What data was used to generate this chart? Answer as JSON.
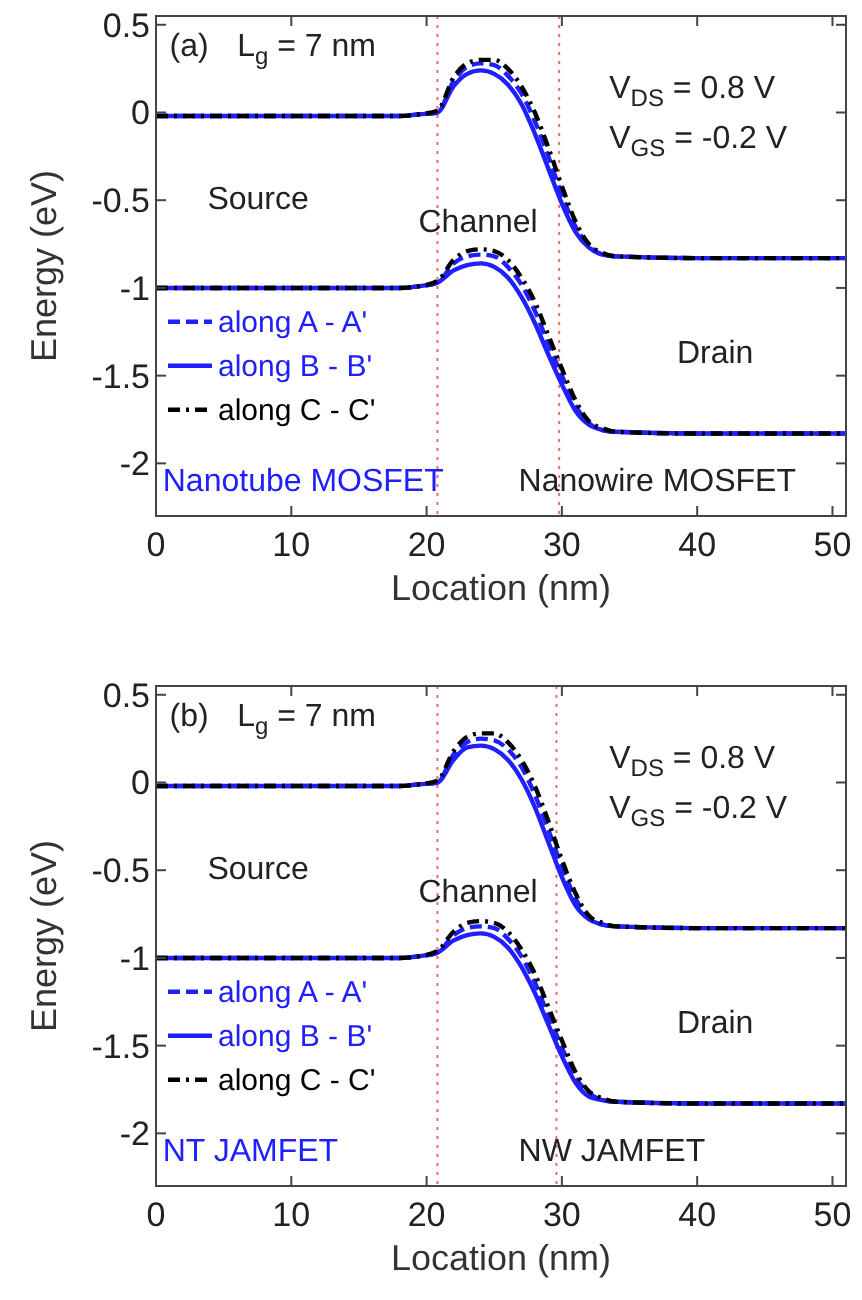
{
  "chart_data": [
    {
      "type": "line",
      "xlabel": "Location (nm)",
      "ylabel": "Energy (eV)",
      "xlim": [
        0,
        51
      ],
      "ylim": [
        -2.3,
        0.55
      ],
      "xticks": [
        0,
        10,
        20,
        30,
        40,
        50
      ],
      "yticks": [
        0.5,
        0,
        -0.5,
        -1,
        -1.5,
        -2
      ],
      "grid": false,
      "legend": "left",
      "marker": "none",
      "x": [
        0,
        18,
        19.5,
        20.8,
        22,
        23,
        24,
        25,
        26,
        27,
        28,
        29,
        30,
        31,
        32,
        33,
        34,
        40,
        51
      ],
      "ref_lines": [
        {
          "axis": "x",
          "value": 20.8,
          "color": "#ff6666",
          "line_style": "dotted"
        },
        {
          "axis": "x",
          "value": 29.8,
          "color": "#ff6666",
          "line_style": "dotted"
        }
      ],
      "annotations": [
        "(a)",
        "L$_{g}$ = 7 nm",
        "V$_{DS}$ = 0.8 V",
        "V$_{GS}$ = -0.2 V",
        "Source",
        "Channel",
        "Drain",
        "Nanotube MOSFET",
        "Nanowire MOSFET"
      ],
      "series": [
        {
          "name": "along A - A'",
          "color": "#2020ff",
          "line_style": "dashed",
          "values": [
            -0.02,
            -0.02,
            -0.01,
            0.0,
            0.18,
            0.26,
            0.28,
            0.27,
            0.21,
            0.11,
            -0.05,
            -0.25,
            -0.47,
            -0.65,
            -0.76,
            -0.81,
            -0.82,
            -0.83,
            -0.83
          ]
        },
        {
          "name": "along B - B'",
          "color": "#2020ff",
          "line_style": "solid",
          "values": [
            -0.02,
            -0.02,
            -0.01,
            0.0,
            0.15,
            0.22,
            0.24,
            0.22,
            0.16,
            0.05,
            -0.12,
            -0.32,
            -0.52,
            -0.68,
            -0.77,
            -0.81,
            -0.82,
            -0.83,
            -0.83
          ]
        },
        {
          "name": "along C - C'",
          "color": "#000000",
          "line_style": "dashdot",
          "values": [
            -0.02,
            -0.02,
            -0.01,
            0.01,
            0.2,
            0.28,
            0.3,
            0.3,
            0.25,
            0.15,
            0.0,
            -0.2,
            -0.42,
            -0.62,
            -0.75,
            -0.8,
            -0.82,
            -0.83,
            -0.83
          ]
        },
        {
          "color": "#2020ff",
          "line_style": "dashed",
          "values": [
            -1.0,
            -1.0,
            -0.99,
            -0.97,
            -0.86,
            -0.82,
            -0.81,
            -0.82,
            -0.88,
            -0.98,
            -1.13,
            -1.32,
            -1.5,
            -1.67,
            -1.77,
            -1.81,
            -1.82,
            -1.83,
            -1.83
          ]
        },
        {
          "color": "#2020ff",
          "line_style": "solid",
          "values": [
            -1.0,
            -1.0,
            -0.99,
            -0.97,
            -0.9,
            -0.87,
            -0.86,
            -0.88,
            -0.94,
            -1.05,
            -1.2,
            -1.38,
            -1.55,
            -1.7,
            -1.78,
            -1.81,
            -1.82,
            -1.83,
            -1.83
          ]
        },
        {
          "color": "#000000",
          "line_style": "dashdot",
          "values": [
            -1.0,
            -1.0,
            -0.99,
            -0.96,
            -0.84,
            -0.79,
            -0.78,
            -0.79,
            -0.84,
            -0.94,
            -1.08,
            -1.27,
            -1.46,
            -1.64,
            -1.76,
            -1.8,
            -1.82,
            -1.83,
            -1.83
          ]
        }
      ]
    },
    {
      "type": "line",
      "xlabel": "Location (nm)",
      "ylabel": "Energy (eV)",
      "xlim": [
        0,
        51
      ],
      "ylim": [
        -2.3,
        0.55
      ],
      "xticks": [
        0,
        10,
        20,
        30,
        40,
        50
      ],
      "yticks": [
        0.5,
        0,
        -0.5,
        -1,
        -1.5,
        -2
      ],
      "grid": false,
      "legend": "left",
      "marker": "none",
      "x": [
        0,
        18,
        19.5,
        20.8,
        22,
        23,
        24,
        25,
        26,
        27,
        28,
        29,
        30,
        31,
        32,
        33,
        34,
        40,
        51
      ],
      "ref_lines": [
        {
          "axis": "x",
          "value": 20.8,
          "color": "#ff6666",
          "line_style": "dotted"
        },
        {
          "axis": "x",
          "value": 29.6,
          "color": "#ff6666",
          "line_style": "dotted"
        }
      ],
      "annotations": [
        "(b)",
        "L$_{g}$ = 7 nm",
        "V$_{DS}$ = 0.8 V",
        "V$_{GS}$ = -0.2 V",
        "Source",
        "Channel",
        "Drain",
        "NT JAMFET",
        "NW JAMFET"
      ],
      "series": [
        {
          "name": "along A - A'",
          "color": "#2020ff",
          "line_style": "dashed",
          "values": [
            -0.02,
            -0.02,
            -0.01,
            0.0,
            0.16,
            0.23,
            0.25,
            0.24,
            0.19,
            0.09,
            -0.07,
            -0.27,
            -0.48,
            -0.66,
            -0.77,
            -0.81,
            -0.82,
            -0.83,
            -0.83
          ]
        },
        {
          "name": "along B - B'",
          "color": "#2020ff",
          "line_style": "solid",
          "values": [
            -0.02,
            -0.02,
            -0.01,
            0.0,
            0.13,
            0.2,
            0.21,
            0.19,
            0.13,
            0.02,
            -0.14,
            -0.34,
            -0.54,
            -0.7,
            -0.78,
            -0.81,
            -0.82,
            -0.83,
            -0.83
          ]
        },
        {
          "name": "along C - C'",
          "color": "#000000",
          "line_style": "dashdot",
          "values": [
            -0.02,
            -0.02,
            -0.01,
            0.01,
            0.18,
            0.26,
            0.28,
            0.28,
            0.23,
            0.13,
            -0.02,
            -0.22,
            -0.44,
            -0.63,
            -0.76,
            -0.8,
            -0.82,
            -0.83,
            -0.83
          ]
        },
        {
          "color": "#2020ff",
          "line_style": "dashed",
          "values": [
            -1.0,
            -1.0,
            -0.99,
            -0.97,
            -0.87,
            -0.83,
            -0.82,
            -0.83,
            -0.89,
            -0.99,
            -1.14,
            -1.33,
            -1.51,
            -1.68,
            -1.77,
            -1.81,
            -1.82,
            -1.83,
            -1.83
          ]
        },
        {
          "color": "#2020ff",
          "line_style": "solid",
          "values": [
            -1.0,
            -1.0,
            -0.99,
            -0.97,
            -0.9,
            -0.87,
            -0.86,
            -0.88,
            -0.94,
            -1.05,
            -1.2,
            -1.38,
            -1.56,
            -1.71,
            -1.79,
            -1.81,
            -1.82,
            -1.83,
            -1.83
          ]
        },
        {
          "color": "#000000",
          "line_style": "dashdot",
          "values": [
            -1.0,
            -1.0,
            -0.99,
            -0.96,
            -0.85,
            -0.8,
            -0.79,
            -0.8,
            -0.85,
            -0.95,
            -1.09,
            -1.28,
            -1.47,
            -1.65,
            -1.76,
            -1.8,
            -1.82,
            -1.83,
            -1.83
          ]
        }
      ]
    }
  ]
}
